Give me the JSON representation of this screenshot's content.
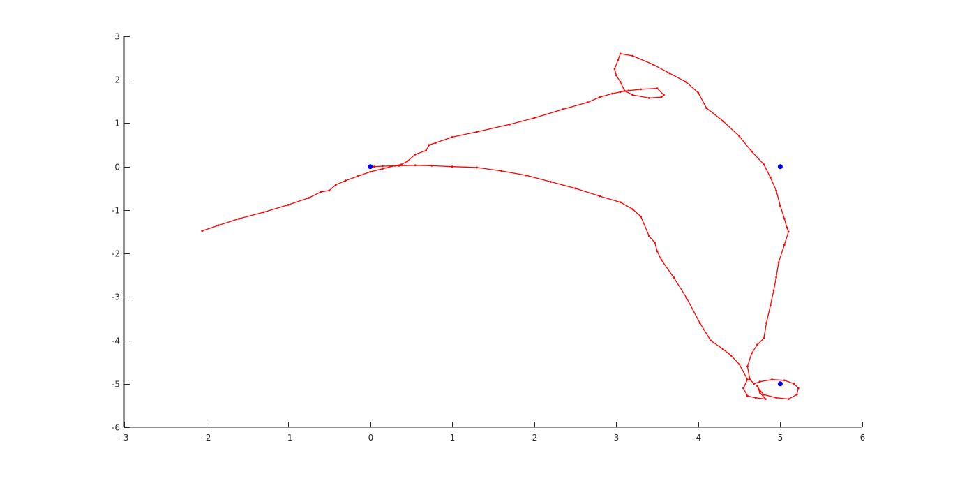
{
  "chart_data": {
    "type": "line",
    "title": "",
    "xlabel": "",
    "ylabel": "",
    "xlim": [
      -3,
      6
    ],
    "ylim": [
      -6,
      3
    ],
    "grid": false,
    "x_ticks": [
      -3,
      -2,
      -1,
      0,
      1,
      2,
      3,
      4,
      5,
      6
    ],
    "y_ticks": [
      -6,
      -5,
      -4,
      -3,
      -2,
      -1,
      0,
      1,
      2,
      3
    ],
    "x_tick_labels": [
      "-3",
      "-2",
      "-1",
      "0",
      "1",
      "2",
      "3",
      "4",
      "5",
      "6"
    ],
    "y_tick_labels": [
      "-6",
      "-5",
      "-4",
      "-3",
      "-2",
      "-1",
      "0",
      "1",
      "2",
      "3"
    ],
    "series": [
      {
        "kind": "line",
        "color": "#ff0000",
        "marker": "dot",
        "x": [
          -2.05,
          -1.85,
          -1.6,
          -1.3,
          -1.0,
          -0.75,
          -0.6,
          -0.5,
          -0.42,
          -0.3,
          -0.15,
          0.0,
          0.15,
          0.3,
          0.38,
          0.45,
          0.55,
          0.68,
          0.72,
          0.8,
          1.0,
          1.3,
          1.7,
          2.0,
          2.35,
          2.65,
          2.8,
          2.95,
          3.05,
          3.15,
          3.3,
          3.5,
          3.58,
          3.55,
          3.4,
          3.2,
          3.1,
          3.05,
          3.0,
          2.98,
          3.02,
          3.05,
          3.2,
          3.45,
          3.65,
          3.85,
          4.0,
          4.1,
          4.3,
          4.5,
          4.65,
          4.8,
          4.88,
          4.95,
          5.0,
          5.05,
          5.08,
          5.1,
          5.05,
          4.98,
          4.95,
          4.92,
          4.88,
          4.83,
          4.8,
          4.72,
          4.65,
          4.6,
          4.63,
          4.68,
          4.75,
          4.9,
          5.05,
          5.17,
          5.22,
          5.2,
          5.1,
          4.95,
          4.8,
          4.75,
          4.72,
          4.75,
          4.82,
          4.7,
          4.6,
          4.55,
          4.6,
          4.5,
          4.4,
          4.3,
          4.15,
          4.02,
          3.85,
          3.7,
          3.55,
          3.5,
          3.47,
          3.4,
          3.3,
          3.2,
          3.05,
          2.8,
          2.5,
          2.2,
          1.9,
          1.6,
          1.3,
          1.0,
          0.75,
          0.55,
          0.35,
          0.15,
          0.05,
          0.0
        ],
        "y": [
          -1.48,
          -1.35,
          -1.2,
          -1.05,
          -0.88,
          -0.72,
          -0.58,
          -0.55,
          -0.42,
          -0.32,
          -0.22,
          -0.12,
          -0.05,
          0.02,
          0.05,
          0.12,
          0.28,
          0.37,
          0.5,
          0.55,
          0.68,
          0.8,
          0.97,
          1.12,
          1.32,
          1.48,
          1.6,
          1.68,
          1.72,
          1.75,
          1.78,
          1.8,
          1.65,
          1.6,
          1.58,
          1.65,
          1.75,
          1.95,
          2.1,
          2.25,
          2.45,
          2.6,
          2.55,
          2.35,
          2.15,
          1.95,
          1.7,
          1.35,
          1.05,
          0.7,
          0.35,
          0.05,
          -0.25,
          -0.55,
          -0.9,
          -1.2,
          -1.4,
          -1.5,
          -1.8,
          -2.2,
          -2.55,
          -2.85,
          -3.2,
          -3.6,
          -3.95,
          -4.1,
          -4.3,
          -4.6,
          -4.9,
          -5.0,
          -4.95,
          -4.9,
          -4.92,
          -5.0,
          -5.1,
          -5.25,
          -5.35,
          -5.32,
          -5.25,
          -5.15,
          -5.05,
          -5.2,
          -5.35,
          -5.32,
          -5.28,
          -5.1,
          -4.9,
          -4.55,
          -4.35,
          -4.2,
          -4.0,
          -3.6,
          -3.0,
          -2.55,
          -2.15,
          -1.95,
          -1.75,
          -1.6,
          -1.15,
          -0.98,
          -0.82,
          -0.68,
          -0.5,
          -0.35,
          -0.2,
          -0.1,
          -0.02,
          0.0,
          0.02,
          0.03,
          0.02,
          0.01,
          0.0,
          0.0
        ]
      },
      {
        "kind": "points",
        "color": "#0000ff",
        "x": [
          0,
          5,
          5
        ],
        "y": [
          0,
          0,
          -5
        ]
      }
    ]
  }
}
